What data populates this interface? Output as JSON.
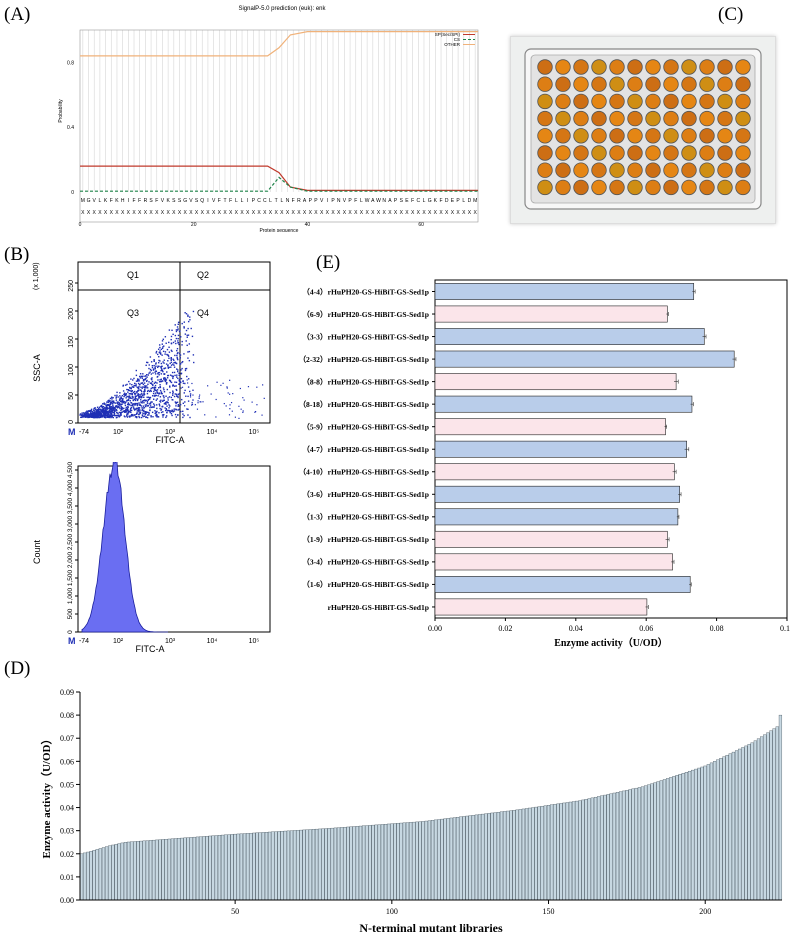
{
  "panel_labels": {
    "A": "(A)",
    "B": "(B)",
    "C": "(C)",
    "D": "(D)",
    "E": "(E)"
  },
  "chart_data": [
    {
      "panel": "(A)",
      "type": "line",
      "title": "SignalP-5.0 prediction (euk): enk",
      "xlabel": "Protein sequence",
      "ylabel": "Probability",
      "xlim": [
        0,
        70
      ],
      "ylim": [
        0,
        1
      ],
      "x_ticks": [
        "0",
        "20",
        "40",
        "60"
      ],
      "y_ticks": [
        "0",
        "0.4",
        "0.8"
      ],
      "legend": [
        "SP(Sec/SPI)",
        "CS",
        "OTHER"
      ],
      "legend_position": "top-right",
      "sequence": "MGVLKFKHIFFRSFVKSSGVSQIVFTFLLIPCCLTLNFRAPPVIPNVPFLWAWNAPSEFCLGKFDEPLDM",
      "sequence_mask": "XXXXXXXXXXXXXXXXXXXXXXXXXXXXXXXXXXXXXXXXXXXXXXXXXXXXXXXXXXXXXXXXXXXXXX",
      "series": [
        {
          "name": "SP(Sec/SPI)",
          "points": [
            [
              0,
              0.16
            ],
            [
              33,
              0.16
            ],
            [
              35,
              0.12
            ],
            [
              37,
              0.03
            ],
            [
              40,
              0.01
            ],
            [
              70,
              0.01
            ]
          ]
        },
        {
          "name": "CS",
          "points": [
            [
              0,
              0.005
            ],
            [
              33,
              0.005
            ],
            [
              35,
              0.09
            ],
            [
              37,
              0.03
            ],
            [
              40,
              0.005
            ],
            [
              70,
              0.005
            ]
          ]
        },
        {
          "name": "OTHER",
          "points": [
            [
              0,
              0.84
            ],
            [
              33,
              0.84
            ],
            [
              35,
              0.89
            ],
            [
              37,
              0.97
            ],
            [
              40,
              0.99
            ],
            [
              70,
              0.99
            ]
          ]
        }
      ]
    },
    {
      "panel": "(B)",
      "type": "scatter",
      "xlabel": "FITC-A",
      "ylabel": "SSC-A",
      "y_multiplier": "(x 1,000)",
      "y_ticks": [
        "0",
        "50",
        "100",
        "150",
        "200",
        "250"
      ],
      "x_ticks": [
        "-74",
        "10²",
        "10³",
        "10⁴",
        "10⁵"
      ],
      "quadrants": [
        "Q1",
        "Q2",
        "Q3",
        "Q4"
      ],
      "gate_label": "M"
    },
    {
      "panel": "(B)",
      "type": "histogram",
      "xlabel": "FITC-A",
      "ylabel": "Count",
      "y_ticks": [
        "0",
        "500",
        "1,000",
        "1,500",
        "2,000",
        "2,500",
        "3,000",
        "3,500",
        "4,000",
        "4,500"
      ],
      "x_ticks": [
        "-74",
        "10²",
        "10³",
        "10⁴",
        "10⁵"
      ],
      "gate_label": "M"
    },
    {
      "panel": "(E)",
      "type": "bar",
      "orientation": "horizontal",
      "xlabel": "Enzyme activity（U/OD）",
      "ylabel": "",
      "xlim": [
        0,
        0.1
      ],
      "x_ticks": [
        "0.00",
        "0.02",
        "0.04",
        "0.06",
        "0.08",
        "0.10"
      ],
      "categories": [
        "（4-4）rHuPH20-GS-HiBiT-GS-Sed1p",
        "（6-9）rHuPH20-GS-HiBiT-GS-Sed1p",
        "（3-3）rHuPH20-GS-HiBiT-GS-Sed1p",
        "（2-32）rHuPH20-GS-HiBiT-GS-Sed1p",
        "（8-8）rHuPH20-GS-HiBiT-GS-Sed1p",
        "（8-18）rHuPH20-GS-HiBiT-GS-Sed1p",
        "（5-9）rHuPH20-GS-HiBiT-GS-Sed1p",
        "（4-7）rHuPH20-GS-HiBiT-GS-Sed1p",
        "（4-10）rHuPH20-GS-HiBiT-GS-Sed1p",
        "（3-6）rHuPH20-GS-HiBiT-GS-Sed1p",
        "（1-3）rHuPH20-GS-HiBiT-GS-Sed1p",
        "（1-9）rHuPH20-GS-HiBiT-GS-Sed1p",
        "（3-4）rHuPH20-GS-HiBiT-GS-Sed1p",
        "（1-6）rHuPH20-GS-HiBiT-GS-Sed1p",
        "rHuPH20-GS-HiBiT-GS-Sed1p"
      ],
      "values": [
        0.0735,
        0.066,
        0.0765,
        0.085,
        0.0685,
        0.073,
        0.0655,
        0.0715,
        0.068,
        0.0695,
        0.069,
        0.066,
        0.0675,
        0.0725,
        0.0602
      ],
      "errors": [
        0.0004,
        0.0003,
        0.0005,
        0.0005,
        0.0006,
        0.0004,
        0.0003,
        0.0006,
        0.0005,
        0.0004,
        0.0003,
        0.0005,
        0.0004,
        0.0003,
        0.0004
      ],
      "colors": [
        "#b9cdea",
        "#fbe5ea",
        "#b9cdea",
        "#b9cdea",
        "#fbe5ea",
        "#b9cdea",
        "#fbe5ea",
        "#b9cdea",
        "#fbe5ea",
        "#b9cdea",
        "#b9cdea",
        "#fbe5ea",
        "#fbe5ea",
        "#b9cdea",
        "#fbe5ea"
      ]
    },
    {
      "panel": "(D)",
      "type": "bar",
      "xlabel": "N-terminal mutant libraries",
      "ylabel": "Enzyme activity（U/OD）",
      "ylim": [
        0,
        0.09
      ],
      "xlim": [
        0.5,
        224.5
      ],
      "y_ticks": [
        "0.00",
        "0.01",
        "0.02",
        "0.03",
        "0.04",
        "0.05",
        "0.06",
        "0.07",
        "0.08",
        "0.09"
      ],
      "x_ticks": [
        "50",
        "100",
        "150",
        "200"
      ],
      "bar_color": "#c7d8e2",
      "n_bars": 224,
      "value_range": [
        0.02,
        0.08
      ],
      "keypoints": [
        [
          1,
          0.02
        ],
        [
          5,
          0.0215
        ],
        [
          10,
          0.0235
        ],
        [
          15,
          0.025
        ],
        [
          30,
          0.0265
        ],
        [
          50,
          0.0285
        ],
        [
          80,
          0.031
        ],
        [
          110,
          0.034
        ],
        [
          140,
          0.039
        ],
        [
          160,
          0.043
        ],
        [
          180,
          0.049
        ],
        [
          200,
          0.058
        ],
        [
          215,
          0.068
        ],
        [
          223,
          0.075
        ],
        [
          224,
          0.08
        ]
      ]
    }
  ]
}
